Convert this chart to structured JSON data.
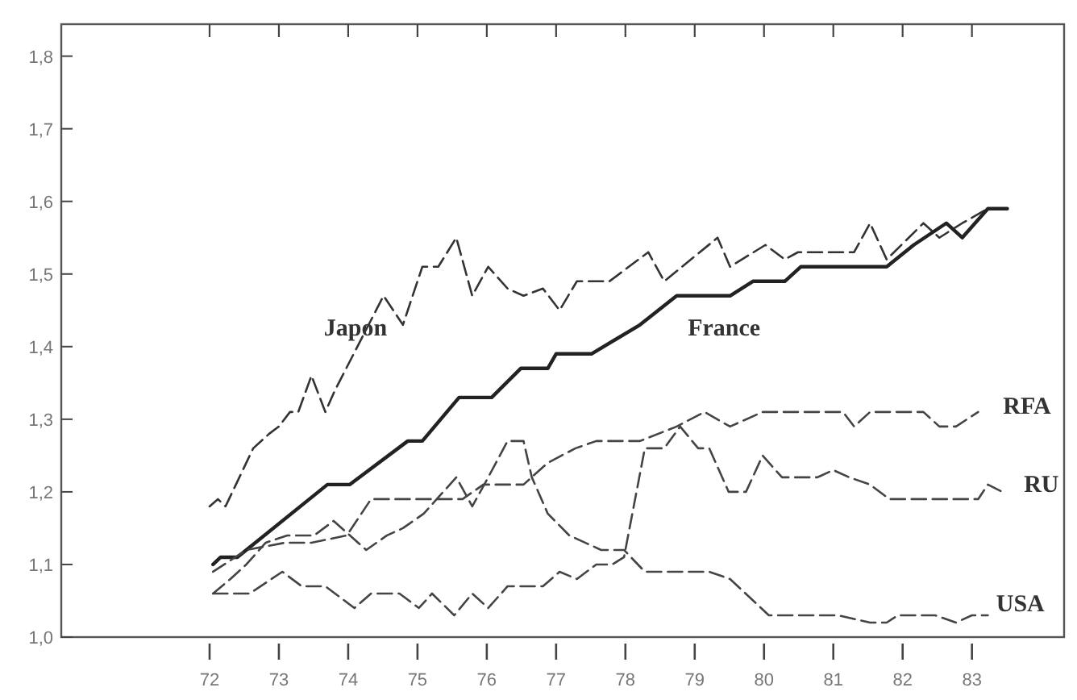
{
  "chart_data": {
    "type": "line",
    "xlim": [
      69.86,
      84.33
    ],
    "ylim": [
      1.0,
      1.844
    ],
    "xticks": [
      72,
      73,
      74,
      75,
      76,
      77,
      78,
      79,
      80,
      81,
      82,
      83
    ],
    "yticks": [
      {
        "value": 1.0,
        "label": "1,0"
      },
      {
        "value": 1.1,
        "label": "1,1"
      },
      {
        "value": 1.2,
        "label": "1,2"
      },
      {
        "value": 1.3,
        "label": "1,3"
      },
      {
        "value": 1.4,
        "label": "1,4"
      },
      {
        "value": 1.5,
        "label": "1,5"
      },
      {
        "value": 1.6,
        "label": "1,6"
      },
      {
        "value": 1.7,
        "label": "1,7"
      },
      {
        "value": 1.8,
        "label": "1,8"
      }
    ],
    "grid": false,
    "marker": "none",
    "series": [
      {
        "name": "Japon",
        "color": "#333333",
        "line_style": "dashed",
        "x": [
          72.0,
          72.12,
          72.23,
          72.63,
          72.86,
          73.0,
          73.16,
          73.28,
          73.47,
          73.67,
          73.81,
          74.51,
          74.79,
          75.07,
          75.3,
          75.56,
          75.79,
          76.02,
          76.3,
          76.53,
          76.81,
          77.05,
          77.3,
          77.77,
          78.33,
          78.56,
          79.33,
          79.51,
          80.02,
          80.3,
          80.49,
          81.3,
          81.53,
          81.77,
          82.3,
          82.53,
          82.86,
          83.23,
          83.51
        ],
        "values": [
          1.18,
          1.19,
          1.18,
          1.26,
          1.28,
          1.29,
          1.31,
          1.31,
          1.36,
          1.31,
          1.34,
          1.47,
          1.43,
          1.51,
          1.51,
          1.55,
          1.47,
          1.51,
          1.48,
          1.47,
          1.48,
          1.45,
          1.49,
          1.49,
          1.53,
          1.49,
          1.55,
          1.51,
          1.54,
          1.52,
          1.53,
          1.53,
          1.57,
          1.52,
          1.57,
          1.55,
          1.57,
          1.59,
          1.59
        ]
      },
      {
        "name": "France",
        "color": "#222222",
        "line_style": "solid",
        "x": [
          72.05,
          72.16,
          72.4,
          73.7,
          74.02,
          74.86,
          75.07,
          75.6,
          76.07,
          76.49,
          76.88,
          77.0,
          77.51,
          78.21,
          78.74,
          79.51,
          79.84,
          80.3,
          80.53,
          81.77,
          82.16,
          82.63,
          82.86,
          83.23,
          83.51
        ],
        "values": [
          1.1,
          1.11,
          1.11,
          1.21,
          1.21,
          1.27,
          1.27,
          1.33,
          1.33,
          1.37,
          1.37,
          1.39,
          1.39,
          1.43,
          1.47,
          1.47,
          1.49,
          1.49,
          1.51,
          1.51,
          1.54,
          1.57,
          1.55,
          1.59,
          1.59
        ]
      },
      {
        "name": "RFA",
        "color": "#444444",
        "line_style": "dashed",
        "x": [
          72.05,
          72.53,
          73.09,
          73.47,
          73.98,
          74.33,
          75.65,
          75.95,
          76.53,
          76.88,
          77.28,
          77.58,
          78.21,
          78.74,
          79.14,
          79.51,
          79.98,
          81.14,
          81.3,
          81.53,
          82.3,
          82.53,
          82.77,
          83.09
        ],
        "values": [
          1.09,
          1.12,
          1.13,
          1.13,
          1.14,
          1.19,
          1.19,
          1.21,
          1.21,
          1.24,
          1.26,
          1.27,
          1.27,
          1.29,
          1.31,
          1.29,
          1.31,
          1.31,
          1.29,
          1.31,
          1.31,
          1.29,
          1.29,
          1.31
        ]
      },
      {
        "name": "RU",
        "color": "#444444",
        "line_style": "dashed",
        "x": [
          72.05,
          72.58,
          73.05,
          73.33,
          73.67,
          74.09,
          74.33,
          74.74,
          75.02,
          75.21,
          75.53,
          75.79,
          76.02,
          76.3,
          76.81,
          77.05,
          77.3,
          77.58,
          77.81,
          77.98,
          78.28,
          78.56,
          78.79,
          79.05,
          79.21,
          79.49,
          79.74,
          79.98,
          80.26,
          80.77,
          81.0,
          81.23,
          81.53,
          81.81,
          83.09,
          83.23,
          83.44
        ],
        "values": [
          1.06,
          1.06,
          1.09,
          1.07,
          1.07,
          1.04,
          1.06,
          1.06,
          1.04,
          1.06,
          1.03,
          1.06,
          1.04,
          1.07,
          1.07,
          1.09,
          1.08,
          1.1,
          1.1,
          1.11,
          1.26,
          1.26,
          1.29,
          1.26,
          1.26,
          1.2,
          1.2,
          1.25,
          1.22,
          1.22,
          1.23,
          1.22,
          1.21,
          1.19,
          1.19,
          1.21,
          1.2
        ]
      },
      {
        "name": "USA",
        "color": "#444444",
        "line_style": "dashed",
        "x": [
          72.05,
          72.3,
          72.53,
          72.81,
          73.12,
          73.51,
          73.79,
          74.26,
          74.56,
          74.79,
          75.09,
          75.56,
          75.79,
          76.02,
          76.3,
          76.53,
          76.65,
          76.88,
          77.19,
          77.65,
          77.98,
          78.28,
          79.21,
          79.51,
          80.07,
          81.07,
          81.53,
          81.77,
          81.93,
          82.47,
          82.77,
          83.0,
          83.23
        ],
        "values": [
          1.06,
          1.08,
          1.1,
          1.13,
          1.14,
          1.14,
          1.16,
          1.12,
          1.14,
          1.15,
          1.17,
          1.22,
          1.18,
          1.22,
          1.27,
          1.27,
          1.22,
          1.17,
          1.14,
          1.12,
          1.12,
          1.09,
          1.09,
          1.08,
          1.03,
          1.03,
          1.02,
          1.02,
          1.03,
          1.03,
          1.02,
          1.03,
          1.03
        ]
      }
    ]
  }
}
